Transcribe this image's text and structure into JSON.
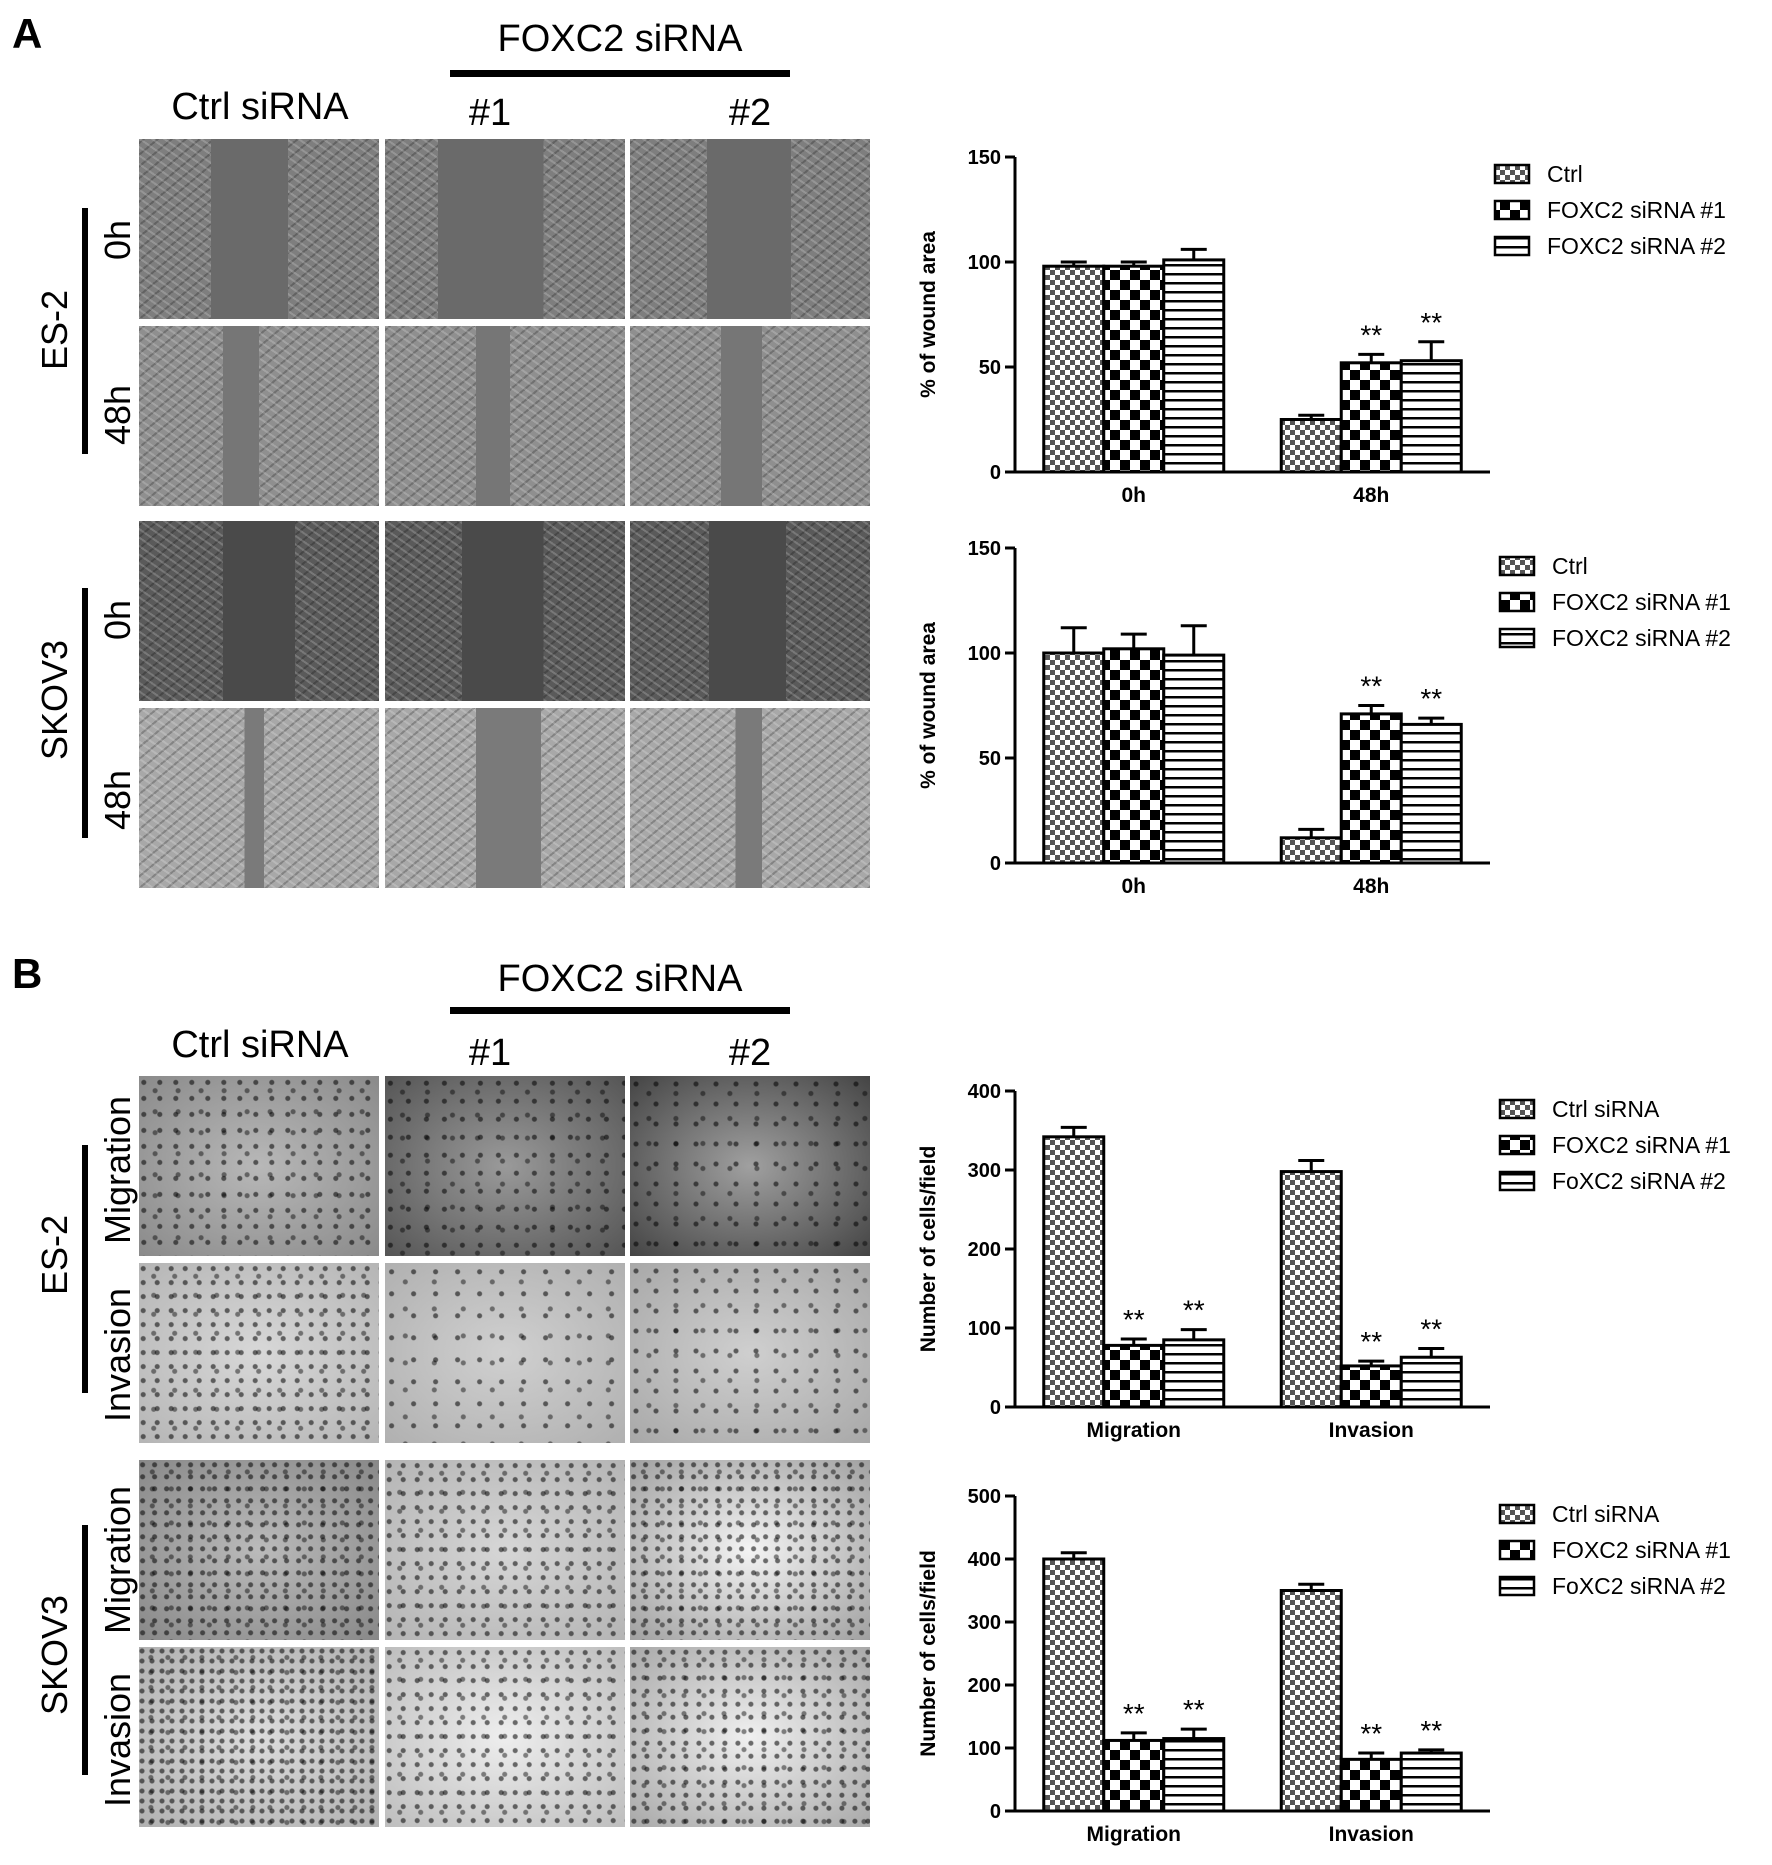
{
  "panels": {
    "a": {
      "letter": "A",
      "group_label": "FOXC2 siRNA",
      "col_labels": [
        "Ctrl siRNA",
        "#1",
        "#2"
      ],
      "row_groups": [
        {
          "cell_line": "ES-2",
          "rows": [
            "0h",
            "48h"
          ]
        },
        {
          "cell_line": "SKOV3",
          "rows": [
            "0h",
            "48h"
          ]
        }
      ]
    },
    "b": {
      "letter": "B",
      "group_label": "FOXC2 siRNA",
      "col_labels": [
        "Ctrl siRNA",
        "#1",
        "#2"
      ],
      "row_groups": [
        {
          "cell_line": "ES-2",
          "rows": [
            "Migration",
            "Invasion"
          ]
        },
        {
          "cell_line": "SKOV3",
          "rows": [
            "Migration",
            "Invasion"
          ]
        }
      ]
    }
  },
  "chart_data": [
    {
      "type": "bar",
      "ylabel": "% of wound area",
      "categories": [
        "0h",
        "48h"
      ],
      "ylim": [
        0,
        150
      ],
      "yticks": [
        0,
        50,
        100,
        150
      ],
      "series": [
        {
          "name": "Ctrl",
          "values": [
            98,
            25
          ],
          "errors": [
            2,
            2
          ]
        },
        {
          "name": "FOXC2 siRNA #1",
          "values": [
            98,
            52
          ],
          "errors": [
            2,
            4
          ]
        },
        {
          "name": "FOXC2 siRNA #2",
          "values": [
            101,
            53
          ],
          "errors": [
            5,
            9
          ]
        }
      ],
      "significance": [
        [
          "",
          ""
        ],
        [
          "",
          "**"
        ],
        [
          "",
          "**"
        ]
      ],
      "legend_position": "right"
    },
    {
      "type": "bar",
      "ylabel": "% of wound area",
      "categories": [
        "0h",
        "48h"
      ],
      "ylim": [
        0,
        150
      ],
      "yticks": [
        0,
        50,
        100,
        150
      ],
      "series": [
        {
          "name": "Ctrl",
          "values": [
            100,
            12
          ],
          "errors": [
            12,
            4
          ]
        },
        {
          "name": "FOXC2 siRNA #1",
          "values": [
            102,
            71
          ],
          "errors": [
            7,
            4
          ]
        },
        {
          "name": "FOXC2 siRNA #2",
          "values": [
            99,
            66
          ],
          "errors": [
            14,
            3
          ]
        }
      ],
      "significance": [
        [
          "",
          ""
        ],
        [
          "",
          "**"
        ],
        [
          "",
          "**"
        ]
      ],
      "legend_position": "right"
    },
    {
      "type": "bar",
      "ylabel": "Number of cells/field",
      "categories": [
        "Migration",
        "Invasion"
      ],
      "ylim": [
        0,
        400
      ],
      "yticks": [
        0,
        100,
        200,
        300,
        400
      ],
      "series": [
        {
          "name": "Ctrl siRNA",
          "values": [
            342,
            298
          ],
          "errors": [
            12,
            14
          ]
        },
        {
          "name": "FOXC2 siRNA #1",
          "values": [
            78,
            52
          ],
          "errors": [
            8,
            6
          ]
        },
        {
          "name": "FoXC2 siRNA #2",
          "values": [
            85,
            63
          ],
          "errors": [
            13,
            11
          ]
        }
      ],
      "significance": [
        [
          "",
          ""
        ],
        [
          "**",
          "**"
        ],
        [
          "**",
          "**"
        ]
      ],
      "legend_position": "right"
    },
    {
      "type": "bar",
      "ylabel": "Number of cells/field",
      "categories": [
        "Migration",
        "Invasion"
      ],
      "ylim": [
        0,
        500
      ],
      "yticks": [
        0,
        100,
        200,
        300,
        400,
        500
      ],
      "series": [
        {
          "name": "Ctrl siRNA",
          "values": [
            400,
            350
          ],
          "errors": [
            10,
            10
          ]
        },
        {
          "name": "FOXC2 siRNA #1",
          "values": [
            112,
            82
          ],
          "errors": [
            12,
            10
          ]
        },
        {
          "name": "FoXC2 siRNA #2",
          "values": [
            115,
            92
          ],
          "errors": [
            15,
            5
          ]
        }
      ],
      "significance": [
        [
          "",
          ""
        ],
        [
          "**",
          "**"
        ],
        [
          "**",
          "**"
        ]
      ],
      "legend_position": "right"
    }
  ]
}
